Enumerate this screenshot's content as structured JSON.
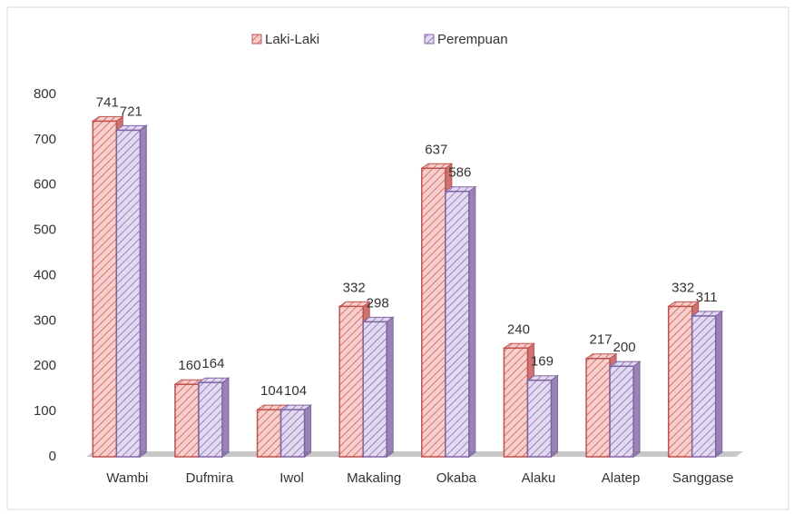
{
  "chart_data": {
    "type": "bar",
    "categories": [
      "Wambi",
      "Dufmira",
      "Iwol",
      "Makaling",
      "Okaba",
      "Alaku",
      "Alatep",
      "Sanggase"
    ],
    "series": [
      {
        "name": "Laki-Laki",
        "color": "#c0504d",
        "values": [
          741,
          160,
          104,
          332,
          637,
          240,
          217,
          332
        ]
      },
      {
        "name": "Perempuan",
        "color": "#8064a2",
        "values": [
          721,
          164,
          104,
          298,
          586,
          169,
          200,
          311
        ]
      }
    ],
    "ylim": [
      0,
      800
    ],
    "yticks": [
      0,
      100,
      200,
      300,
      400,
      500,
      600,
      700,
      800
    ],
    "grid": false,
    "legend": "top"
  }
}
